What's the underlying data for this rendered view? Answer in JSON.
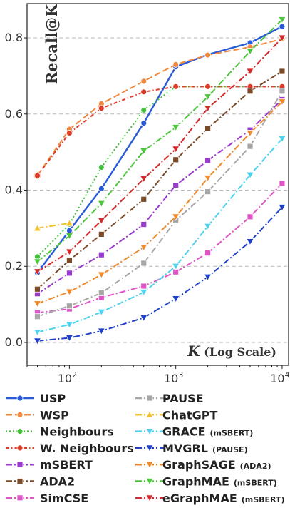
{
  "chart_data": {
    "type": "line",
    "ylabel": "Recall@K",
    "xlabel": "K (Log Scale)",
    "xscale": "log",
    "xlim": [
      40,
      11500
    ],
    "ylim": [
      -0.06,
      0.89
    ],
    "x_ticks": [
      {
        "value": 100,
        "base": "10",
        "exp": "2"
      },
      {
        "value": 1000,
        "base": "10",
        "exp": "3"
      },
      {
        "value": 10000,
        "base": "10",
        "exp": "4"
      }
    ],
    "y_ticks": [
      "0.0",
      "0.2",
      "0.4",
      "0.6",
      "0.8"
    ],
    "grid": "horizontal dashed",
    "legend_position": "below",
    "series": [
      {
        "name": "USP",
        "sub": "",
        "color": "#2a5bd7",
        "dash": "",
        "marker": "circle",
        "x": [
          50,
          100,
          200,
          500,
          1000,
          2000,
          5000,
          10000
        ],
        "y": [
          0.183,
          0.294,
          0.404,
          0.576,
          0.724,
          0.756,
          0.787,
          0.83
        ]
      },
      {
        "name": "WSP",
        "sub": "",
        "color": "#f0883e",
        "dash": "9,4",
        "marker": "circle",
        "x": [
          50,
          100,
          200,
          500,
          1000,
          2000,
          5000,
          10000
        ],
        "y": [
          0.438,
          0.56,
          0.627,
          0.686,
          0.73,
          0.755,
          0.776,
          0.797
        ]
      },
      {
        "name": "Neighbours",
        "sub": "",
        "color": "#44c03c",
        "dash": "2,3",
        "marker": "circle",
        "x": [
          50,
          100,
          200,
          500,
          1000,
          2000,
          5000,
          10000
        ],
        "y": [
          0.225,
          0.31,
          0.46,
          0.61,
          0.672,
          0.672,
          0.672,
          0.672
        ]
      },
      {
        "name": "W. Neighbours",
        "sub": "",
        "color": "#dd3b2a",
        "dash": "5,3,1.5,3",
        "marker": "circle",
        "x": [
          50,
          100,
          200,
          500,
          1000,
          2000,
          5000,
          10000
        ],
        "y": [
          0.438,
          0.55,
          0.615,
          0.658,
          0.672,
          0.672,
          0.672,
          0.672
        ]
      },
      {
        "name": "mSBERT",
        "sub": "",
        "color": "#9a3bd0",
        "dash": "9,3,2,3",
        "marker": "square",
        "x": [
          50,
          100,
          200,
          500,
          1000,
          2000,
          5000,
          10000
        ],
        "y": [
          0.128,
          0.182,
          0.23,
          0.31,
          0.413,
          0.478,
          0.558,
          0.638
        ]
      },
      {
        "name": "ADA2",
        "sub": "",
        "color": "#7b4a28",
        "dash": "9,3,2,3",
        "marker": "square",
        "x": [
          50,
          100,
          200,
          500,
          1000,
          2000,
          5000,
          10000
        ],
        "y": [
          0.14,
          0.216,
          0.284,
          0.376,
          0.48,
          0.562,
          0.66,
          0.712
        ]
      },
      {
        "name": "SimCSE",
        "sub": "",
        "color": "#e055c6",
        "dash": "9,3,2,3",
        "marker": "square",
        "x": [
          50,
          100,
          200,
          500,
          1000,
          2000,
          5000,
          10000
        ],
        "y": [
          0.078,
          0.088,
          0.118,
          0.148,
          0.185,
          0.235,
          0.33,
          0.418
        ]
      },
      {
        "name": "PAUSE",
        "sub": "",
        "color": "#a7a7a7",
        "dash": "9,3,2,3",
        "marker": "square",
        "x": [
          50,
          100,
          200,
          500,
          1000,
          2000,
          5000,
          10000
        ],
        "y": [
          0.068,
          0.096,
          0.13,
          0.208,
          0.32,
          0.396,
          0.515,
          0.66
        ]
      },
      {
        "name": "ChatGPT",
        "sub": "",
        "color": "#f2c12e",
        "dash": "9,3,2,3",
        "marker": "triangle-up",
        "x": [
          50,
          100
        ],
        "y": [
          0.3,
          0.313
        ]
      },
      {
        "name": "GRACE",
        "sub": "(mSBERT)",
        "color": "#4fd3ee",
        "dash": "9,3,2,3",
        "marker": "triangle-down",
        "x": [
          50,
          100,
          200,
          500,
          1000,
          2000,
          5000,
          10000
        ],
        "y": [
          0.027,
          0.047,
          0.08,
          0.132,
          0.2,
          0.305,
          0.44,
          0.535
        ]
      },
      {
        "name": "MVGRL",
        "sub": "(PAUSE)",
        "color": "#1e40c8",
        "dash": "9,3,2,3",
        "marker": "triangle-down",
        "x": [
          50,
          100,
          200,
          500,
          1000,
          2000,
          5000,
          10000
        ],
        "y": [
          0.004,
          0.012,
          0.03,
          0.065,
          0.115,
          0.172,
          0.265,
          0.355
        ]
      },
      {
        "name": "GraphSAGE",
        "sub": "(ADA2)",
        "color": "#ee8a2c",
        "dash": "9,3,2,3",
        "marker": "triangle-down",
        "x": [
          50,
          100,
          200,
          500,
          1000,
          2000,
          5000,
          10000
        ],
        "y": [
          0.102,
          0.133,
          0.178,
          0.25,
          0.33,
          0.432,
          0.55,
          0.632
        ]
      },
      {
        "name": "GraphMAE",
        "sub": "(mSBERT)",
        "color": "#4cc63a",
        "dash": "9,3,2,3",
        "marker": "triangle-down",
        "x": [
          50,
          100,
          200,
          500,
          1000,
          2000,
          5000,
          10000
        ],
        "y": [
          0.212,
          0.28,
          0.365,
          0.503,
          0.565,
          0.645,
          0.765,
          0.848
        ]
      },
      {
        "name": "eGraphMAE",
        "sub": "(mSBERT)",
        "color": "#d32b2b",
        "dash": "9,3,2,3",
        "marker": "triangle-down",
        "x": [
          50,
          100,
          200,
          500,
          1000,
          2000,
          5000,
          10000
        ],
        "y": [
          0.186,
          0.238,
          0.32,
          0.43,
          0.508,
          0.615,
          0.712,
          0.8
        ]
      }
    ]
  }
}
